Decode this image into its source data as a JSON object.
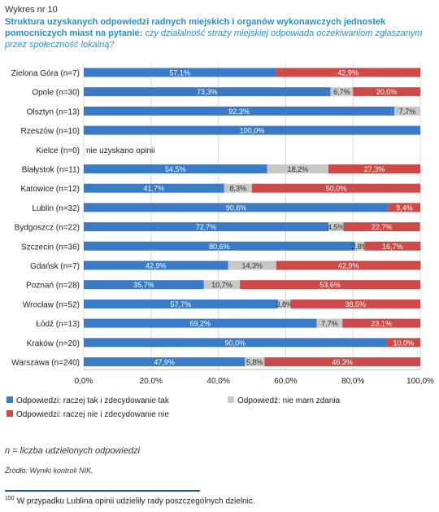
{
  "header": {
    "figure_label": "Wykres nr 10",
    "title": "Struktura uzyskanych odpowiedzi radnych miejskich i organów wykonawczych jednostek pomocniczych miast na pytanie: ",
    "question": "czy działalność straży miejskiej odpowiada oczekiwaniom zgłaszanym przez społeczność lokalną?"
  },
  "chart_data": {
    "type": "bar",
    "orientation": "horizontal",
    "stacked": true,
    "categories": [
      "Zielona Góra (n=7)",
      "Opole (n=30)",
      "Olsztyn (n=13)",
      "Rzeszów (n=10)",
      "Kielce (n=0)",
      "Białystok (n=11)",
      "Katowice (n=12)",
      "Lublin (n=32)",
      "Bydgoszcz (n=22)",
      "Szczecin (n=36)",
      "Gdańsk (n=7)",
      "Poznań (n=28)",
      "Wrocław (n=52)",
      "Łódź (n=13)",
      "Kraków (n=20)",
      "Warszawa (n=240)"
    ],
    "series": [
      {
        "name": "Odpowiedzi: raczej tak i zdecydowanie tak",
        "color": "#3a7bc8",
        "values": [
          57.1,
          73.3,
          92.3,
          100.0,
          null,
          54.5,
          41.7,
          90.6,
          72.7,
          80.6,
          42.9,
          35.7,
          57.7,
          69.2,
          90.0,
          47.9
        ]
      },
      {
        "name": "Odpowiedź: nie mam zdania",
        "color": "#c8c8c8",
        "values": [
          0,
          6.7,
          7.7,
          0,
          null,
          18.2,
          8.3,
          0,
          4.5,
          2.8,
          14.3,
          10.7,
          3.8,
          7.7,
          0,
          5.8
        ]
      },
      {
        "name": "Odpowiedzi: raczej nie i zdecydowanie nie",
        "color": "#cc4b48",
        "values": [
          42.9,
          20.0,
          0,
          0,
          null,
          27.3,
          50.0,
          9.4,
          22.7,
          16.7,
          42.9,
          53.6,
          38.5,
          23.1,
          10.0,
          46.3
        ]
      }
    ],
    "value_labels": [
      [
        "57,1%",
        "",
        "42,9%"
      ],
      [
        "73,3%",
        "6,7%",
        "20,0%"
      ],
      [
        "92,3%",
        "7,7%",
        ""
      ],
      [
        "100,0%",
        "",
        ""
      ],
      [
        "",
        "",
        ""
      ],
      [
        "54,5%",
        "18,2%",
        "27,3%"
      ],
      [
        "41,7%",
        "8,3%",
        "50,0%"
      ],
      [
        "90,6%",
        "",
        "9,4%"
      ],
      [
        "72,7%",
        "4,5%",
        "22,7%"
      ],
      [
        "80,6%",
        "2,8%",
        "16,7%"
      ],
      [
        "42,9%",
        "14,3%",
        "42,9%"
      ],
      [
        "35,7%",
        "10,7%",
        "53,6%"
      ],
      [
        "57,7%",
        "3,8%",
        "38,5%"
      ],
      [
        "69,2%",
        "7,7%",
        "23,1%"
      ],
      [
        "90,0%",
        "",
        "10,0%"
      ],
      [
        "47,9%",
        "5,8%",
        "46,3%"
      ]
    ],
    "annotations": [
      {
        "category": "Kielce (n=0)",
        "text": "nie uzyskano opinii"
      }
    ],
    "x_ticks": [
      0,
      20,
      40,
      60,
      80,
      100
    ],
    "x_tick_labels": [
      "0,0%",
      "20,0%",
      "40,0%",
      "60,0%",
      "80,0%",
      "100,0%"
    ],
    "xlim": [
      0,
      100
    ],
    "legend_position": "bottom",
    "grid": true
  },
  "notes": {
    "n_definition": "n = liczba udzielonych odpowiedzi",
    "source": "Źródło: Wyniki kontroli NIK.",
    "footnote_number": "150",
    "footnote_text": "W przypadku Lublina opinii udzieliły rady poszczególnych dzielnic."
  }
}
